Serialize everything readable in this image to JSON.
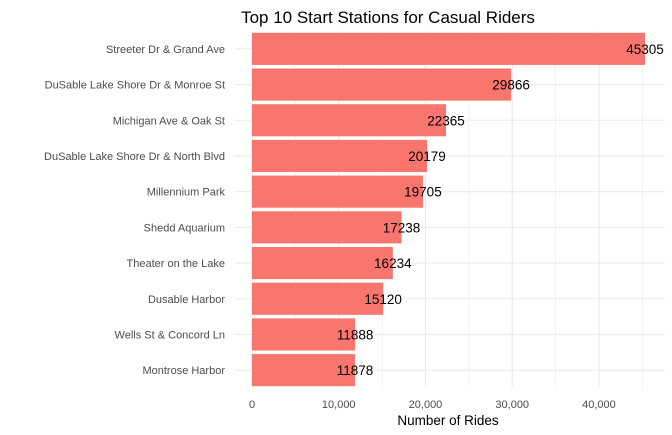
{
  "chart_data": {
    "type": "bar",
    "orientation": "horizontal",
    "title": "Top 10 Start Stations for Casual Riders",
    "xlabel": "Number of Rides",
    "ylabel": "",
    "categories": [
      "Streeter Dr & Grand Ave",
      "DuSable Lake Shore Dr & Monroe St",
      "Michigan Ave & Oak St",
      "DuSable Lake Shore Dr & North Blvd",
      "Millennium Park",
      "Shedd Aquarium",
      "Theater on the Lake",
      "Dusable Harbor",
      "Wells St & Concord Ln",
      "Montrose Harbor"
    ],
    "values": [
      45305,
      29866,
      22365,
      20179,
      19705,
      17238,
      16234,
      15120,
      11888,
      11878
    ],
    "x_ticks": [
      0,
      10000,
      20000,
      30000,
      40000
    ],
    "x_tick_labels": [
      "0",
      "10,000",
      "20,000",
      "30,000",
      "40,000"
    ],
    "xlim": [
      0,
      45305
    ],
    "grid": true,
    "bar_color": "#F8766D",
    "grid_color": "#EBEBEB"
  }
}
